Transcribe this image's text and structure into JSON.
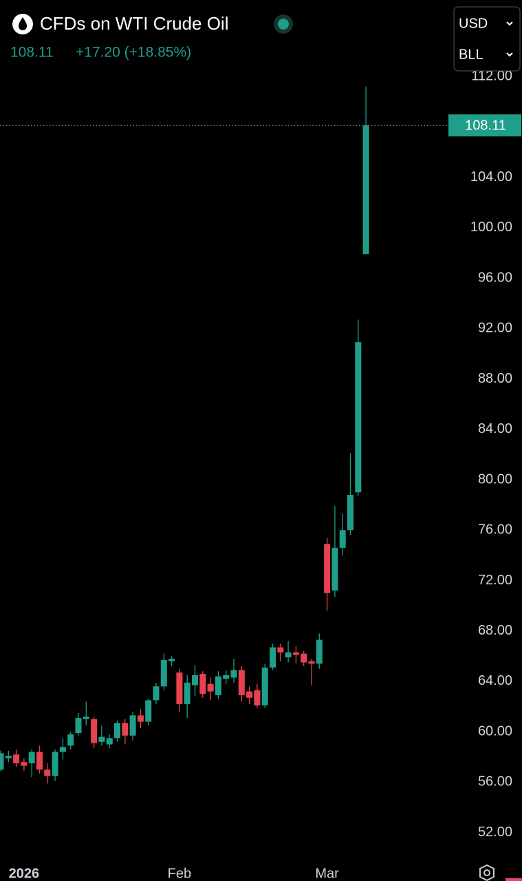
{
  "header": {
    "title": "CFDs on WTI Crude Oil",
    "price": "108.11",
    "change": "+17.20 (+18.85%)"
  },
  "controls": {
    "currency": "USD",
    "unit": "BLL"
  },
  "chart_data": {
    "type": "candlestick",
    "categories": [
      null,
      null,
      null,
      "2026",
      null,
      null,
      null,
      null,
      null,
      null,
      null,
      null,
      null,
      null,
      null,
      null,
      null,
      null,
      null,
      null,
      null,
      null,
      null,
      "Feb",
      null,
      null,
      null,
      null,
      null,
      null,
      null,
      null,
      null,
      null,
      null,
      null,
      null,
      null,
      null,
      null,
      null,
      null,
      "Mar",
      null,
      null,
      null,
      null,
      null
    ],
    "open": [
      57.0,
      57.9,
      58.2,
      57.6,
      57.5,
      58.4,
      57.0,
      56.5,
      58.4,
      58.9,
      59.9,
      61.0,
      61.0,
      59.2,
      59.0,
      59.5,
      60.7,
      59.7,
      61.3,
      60.8,
      62.5,
      63.6,
      65.6,
      64.7,
      62.2,
      63.7,
      64.6,
      63.8,
      62.9,
      64.2,
      64.3,
      64.9,
      63.2,
      63.3,
      62.1,
      65.1,
      66.7,
      65.9,
      66.3,
      66.2,
      65.6,
      65.4,
      74.9,
      71.2,
      74.6,
      76.0,
      79.0,
      97.9
    ],
    "high": [
      58.5,
      58.5,
      58.6,
      57.9,
      58.6,
      58.9,
      57.5,
      58.6,
      59.5,
      60.0,
      61.5,
      62.4,
      61.2,
      60.5,
      59.8,
      60.9,
      61.0,
      61.6,
      61.8,
      62.6,
      63.9,
      66.2,
      66.0,
      65.0,
      64.5,
      65.3,
      64.8,
      64.3,
      64.8,
      64.9,
      65.8,
      65.2,
      63.6,
      63.8,
      65.4,
      67.0,
      67.0,
      67.2,
      66.8,
      66.4,
      65.8,
      67.8,
      75.4,
      77.9,
      77.3,
      82.1,
      92.7,
      111.2
    ],
    "low": [
      56.9,
      57.6,
      57.2,
      56.9,
      56.4,
      56.7,
      55.9,
      56.1,
      57.8,
      58.6,
      59.7,
      60.5,
      58.7,
      58.9,
      58.7,
      59.2,
      59.0,
      59.3,
      60.3,
      60.5,
      62.2,
      63.3,
      65.2,
      61.6,
      61.1,
      62.8,
      62.7,
      62.5,
      62.6,
      63.8,
      63.9,
      62.4,
      62.2,
      61.9,
      61.9,
      64.9,
      65.6,
      65.5,
      65.4,
      65.2,
      63.7,
      65.0,
      69.6,
      70.7,
      74.0,
      75.6,
      78.7,
      97.9
    ],
    "close": [
      58.3,
      58.1,
      57.5,
      57.3,
      58.4,
      57.0,
      56.5,
      58.4,
      58.8,
      59.8,
      61.1,
      61.2,
      59.1,
      59.6,
      59.5,
      60.7,
      59.7,
      61.3,
      60.8,
      62.5,
      63.6,
      65.7,
      65.8,
      62.2,
      63.9,
      64.5,
      63.0,
      63.2,
      64.4,
      64.5,
      64.9,
      62.9,
      62.7,
      62.1,
      65.1,
      66.7,
      66.3,
      66.3,
      66.1,
      65.5,
      65.4,
      67.3,
      71.0,
      74.6,
      76.0,
      78.8,
      90.91,
      108.11
    ],
    "up_color": "#1f9e89",
    "down_color": "#e8424f",
    "ylim": [
      49.8,
      112.6
    ],
    "yticks": [
      {
        "value": 52,
        "label": "52.00"
      },
      {
        "value": 56,
        "label": "56.00"
      },
      {
        "value": 60,
        "label": "60.00"
      },
      {
        "value": 64,
        "label": "64.00"
      },
      {
        "value": 68,
        "label": "68.00"
      },
      {
        "value": 72,
        "label": "72.00"
      },
      {
        "value": 76,
        "label": "76.00"
      },
      {
        "value": 80,
        "label": "80.00"
      },
      {
        "value": 84,
        "label": "84.00"
      },
      {
        "value": 88,
        "label": "88.00"
      },
      {
        "value": 92,
        "label": "92.00"
      },
      {
        "value": 96,
        "label": "96.00"
      },
      {
        "value": 100,
        "label": "100.00"
      },
      {
        "value": 104,
        "label": "104.00"
      },
      {
        "value": 112,
        "label": "112.00"
      }
    ]
  }
}
